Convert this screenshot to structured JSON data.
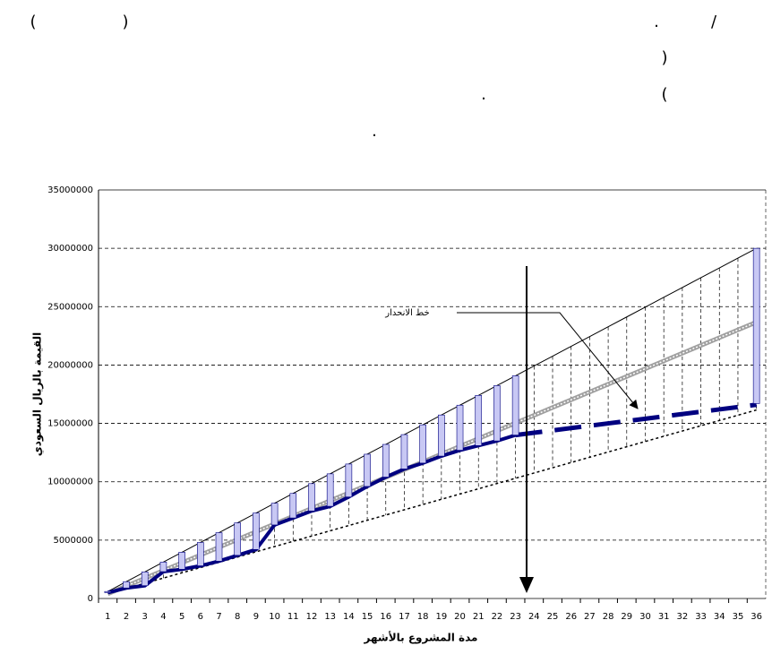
{
  "header_fragments": [
    "(",
    ")",
    ".",
    "/",
    ")",
    "(",
    ".",
    "."
  ],
  "chart_data": {
    "type": "line",
    "x_label": "مدة المشروع بالأشهر",
    "y_label": "القيمة بالريال السعودي",
    "annotation": "خط الانحدار",
    "categories": [
      1,
      2,
      3,
      4,
      5,
      6,
      7,
      8,
      9,
      10,
      11,
      12,
      13,
      14,
      15,
      16,
      17,
      18,
      19,
      20,
      21,
      22,
      23,
      24,
      25,
      26,
      27,
      28,
      29,
      30,
      31,
      32,
      33,
      34,
      35,
      36
    ],
    "ylim": [
      0,
      35000000
    ],
    "yticks": [
      0,
      5000000,
      10000000,
      15000000,
      20000000,
      25000000,
      30000000,
      35000000
    ],
    "grid": true,
    "drop_lines": true,
    "upper": {
      "color": "#000000",
      "values": [
        600000,
        1440000,
        2280000,
        3120000,
        3960000,
        4800000,
        5640000,
        6480000,
        7320000,
        8160000,
        9000000,
        9840000,
        10680000,
        11520000,
        12360000,
        13200000,
        14040000,
        14880000,
        15720000,
        16560000,
        17400000,
        18240000,
        19080000,
        19920000,
        20760000,
        21600000,
        22440000,
        23280000,
        24120000,
        24960000,
        25800000,
        26640000,
        27480000,
        28320000,
        29160000,
        30000000
      ]
    },
    "lower": {
      "color": "#000000",
      "values": [
        400000,
        850000,
        1300000,
        1750000,
        2200000,
        2650000,
        3100000,
        3550000,
        4000000,
        4450000,
        4900000,
        5350000,
        5800000,
        6250000,
        6700000,
        7150000,
        7600000,
        8050000,
        8500000,
        8950000,
        9400000,
        9850000,
        10300000,
        10750000,
        11200000,
        11650000,
        12100000,
        12550000,
        13000000,
        13450000,
        13900000,
        14350000,
        14800000,
        15250000,
        15700000,
        16150000
      ]
    },
    "regression": {
      "color": "#a0a0a0",
      "values": [
        400000,
        1065000,
        1730000,
        2395000,
        3060000,
        3725000,
        4390000,
        5055000,
        5720000,
        6385000,
        7050000,
        7715000,
        8380000,
        9045000,
        9710000,
        10375000,
        11040000,
        11705000,
        12370000,
        13035000,
        13700000,
        14365000,
        15030000,
        15695000,
        16360000,
        17025000,
        17690000,
        18355000,
        19020000,
        19685000,
        20350000,
        21015000,
        21680000,
        22345000,
        23010000,
        23675000
      ]
    },
    "actual": {
      "color": "#000080",
      "values": [
        500000,
        900000,
        1100000,
        2300000,
        2500000,
        2800000,
        3200000,
        3700000,
        4200000,
        6300000,
        6900000,
        7500000,
        7900000,
        8700000,
        9600000,
        10400000,
        11100000,
        11600000,
        12200000,
        12700000,
        13100000,
        13500000,
        14000000,
        null,
        null,
        null,
        null,
        null,
        null,
        null,
        null,
        null,
        null,
        null,
        null,
        null
      ]
    },
    "forecast": {
      "color": "#000080",
      "values": [
        null,
        null,
        null,
        null,
        null,
        null,
        null,
        null,
        null,
        null,
        null,
        null,
        null,
        null,
        null,
        null,
        null,
        null,
        null,
        null,
        null,
        null,
        14000000,
        14200000,
        14400000,
        14600000,
        14800000,
        15000000,
        15200000,
        15400000,
        15600000,
        15800000,
        16000000,
        16200000,
        16400000,
        16600000
      ]
    },
    "bars": {
      "color": "#c8c8f4",
      "low": [
        500000,
        900000,
        1100000,
        2300000,
        2500000,
        2800000,
        3200000,
        3700000,
        4200000,
        6300000,
        6900000,
        7500000,
        7900000,
        8700000,
        9600000,
        10400000,
        11100000,
        11600000,
        12200000,
        12700000,
        13100000,
        13500000,
        14000000,
        null,
        null,
        null,
        null,
        null,
        null,
        null,
        null,
        null,
        null,
        null,
        null,
        16700000
      ],
      "high": [
        600000,
        1440000,
        2280000,
        3120000,
        3960000,
        4800000,
        5640000,
        6480000,
        7320000,
        8160000,
        9000000,
        9840000,
        10680000,
        11520000,
        12360000,
        13200000,
        14040000,
        14880000,
        15720000,
        16560000,
        17400000,
        18240000,
        19080000,
        null,
        null,
        null,
        null,
        null,
        null,
        null,
        null,
        null,
        null,
        null,
        null,
        30000000
      ]
    }
  }
}
